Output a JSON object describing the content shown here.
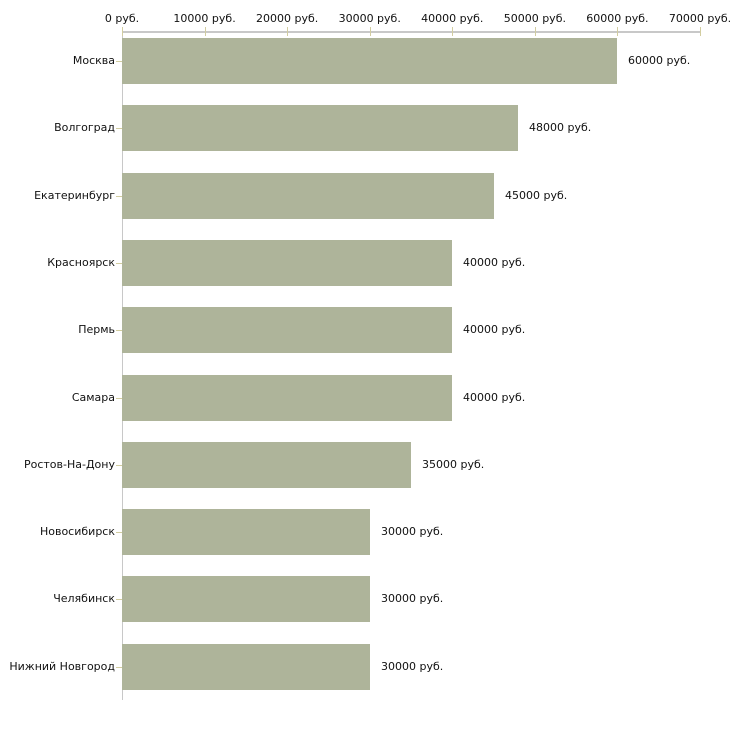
{
  "chart_data": {
    "type": "bar",
    "orientation": "horizontal",
    "title": "",
    "xlabel": "",
    "ylabel": "",
    "unit": "руб.",
    "categories": [
      "Москва",
      "Волгоград",
      "Екатеринбург",
      "Красноярск",
      "Пермь",
      "Самара",
      "Ростов-На-Дону",
      "Новосибирск",
      "Челябинск",
      "Нижний Новгород"
    ],
    "values": [
      60000,
      48000,
      45000,
      40000,
      40000,
      40000,
      35000,
      30000,
      30000,
      30000
    ],
    "value_labels": [
      "60000 руб.",
      "48000 руб.",
      "45000 руб.",
      "40000 руб.",
      "40000 руб.",
      "40000 руб.",
      "35000 руб.",
      "30000 руб.",
      "30000 руб.",
      "30000 руб."
    ],
    "xlim": [
      0,
      70000
    ],
    "x_ticks": [
      0,
      10000,
      20000,
      30000,
      40000,
      50000,
      60000,
      70000
    ],
    "x_tick_labels": [
      "0 руб.",
      "10000 руб.",
      "20000 руб.",
      "30000 руб.",
      "40000 руб.",
      "50000 руб.",
      "60000 руб.",
      "70000 руб."
    ],
    "grid": false,
    "legend": false,
    "colors": {
      "bar": "#aeb49a",
      "axis_line": "#c8c8c8",
      "tick_mark": "#d2cda0",
      "text": "#111111",
      "background": "#ffffff"
    }
  }
}
